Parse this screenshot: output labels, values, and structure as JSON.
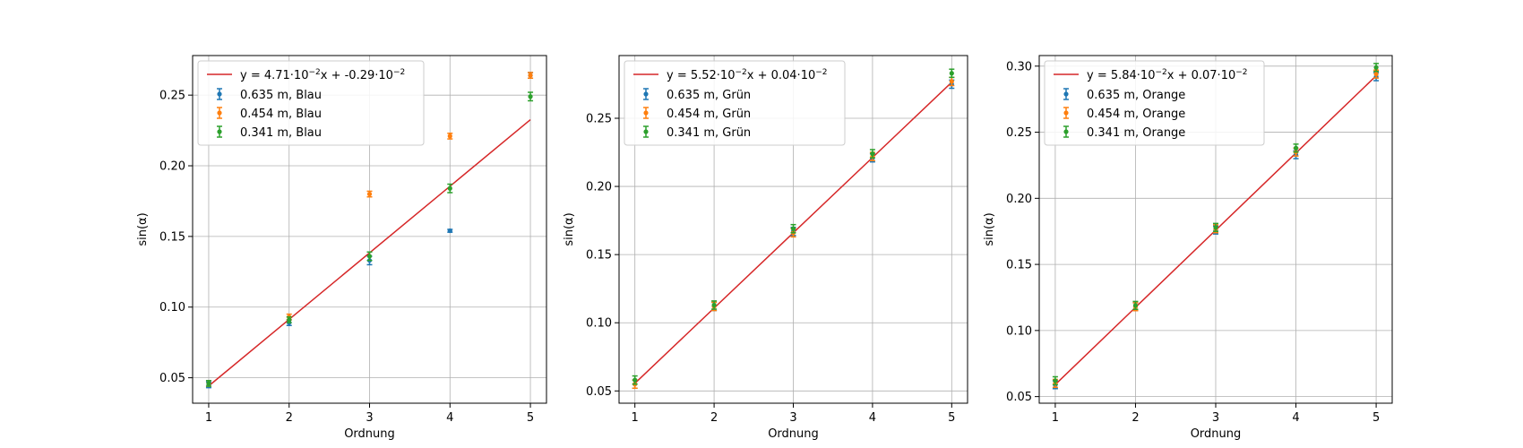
{
  "chart_data": [
    {
      "type": "scatter",
      "xlabel": "Ordnung",
      "ylabel": "sin(α)",
      "xlim": [
        0.8,
        5.2
      ],
      "ylim": [
        0.032,
        0.278
      ],
      "x_ticks": [
        1,
        2,
        3,
        4,
        5
      ],
      "y_ticks": [
        0.05,
        0.1,
        0.15,
        0.2,
        0.25
      ],
      "y_tick_labels": [
        "0.05",
        "0.10",
        "0.15",
        "0.20",
        "0.25"
      ],
      "grid": true,
      "legend_position": "top-left",
      "fit": {
        "label_main": "y = 4.71·10",
        "label_exp1": "−2",
        "label_mid": "x + -0.29·10",
        "label_exp2": "−2",
        "slope": 0.0471,
        "intercept": -0.0029,
        "color": "#d62728"
      },
      "series": [
        {
          "name": "0.635 m, Blau",
          "color": "#1f77b4",
          "x": [
            1,
            2,
            3,
            4,
            5
          ],
          "y": [
            0.045,
            0.089,
            0.133,
            0.154,
            0.264
          ],
          "err": [
            0.002,
            0.002,
            0.003,
            0.001,
            0.002
          ]
        },
        {
          "name": "0.454 m, Blau",
          "color": "#ff7f0e",
          "x": [
            1,
            2,
            3,
            4,
            5
          ],
          "y": [
            0.046,
            0.093,
            0.18,
            0.221,
            0.264
          ],
          "err": [
            0.002,
            0.002,
            0.002,
            0.002,
            0.002
          ]
        },
        {
          "name": "0.341 m, Blau",
          "color": "#2ca02c",
          "x": [
            1,
            2,
            3,
            4,
            5
          ],
          "y": [
            0.046,
            0.091,
            0.136,
            0.184,
            0.249
          ],
          "err": [
            0.002,
            0.002,
            0.003,
            0.003,
            0.003
          ]
        }
      ]
    },
    {
      "type": "scatter",
      "xlabel": "Ordnung",
      "ylabel": "sin(α)",
      "xlim": [
        0.8,
        5.2
      ],
      "ylim": [
        0.041,
        0.296
      ],
      "x_ticks": [
        1,
        2,
        3,
        4,
        5
      ],
      "y_ticks": [
        0.05,
        0.1,
        0.15,
        0.2,
        0.25
      ],
      "y_tick_labels": [
        "0.05",
        "0.10",
        "0.15",
        "0.20",
        "0.25"
      ],
      "grid": true,
      "legend_position": "top-left",
      "fit": {
        "label_main": "y = 5.52·10",
        "label_exp1": "−2",
        "label_mid": "x + 0.04·10",
        "label_exp2": "−2",
        "slope": 0.0552,
        "intercept": 0.0004,
        "color": "#d62728"
      },
      "series": [
        {
          "name": "0.635 m, Grün",
          "color": "#1f77b4",
          "x": [
            1,
            2,
            3,
            4,
            5
          ],
          "y": [
            0.055,
            0.112,
            0.167,
            0.221,
            0.275
          ],
          "err": [
            0.003,
            0.003,
            0.003,
            0.003,
            0.003
          ]
        },
        {
          "name": "0.454 m, Grün",
          "color": "#ff7f0e",
          "x": [
            1,
            2,
            3,
            4,
            5
          ],
          "y": [
            0.055,
            0.112,
            0.166,
            0.222,
            0.277
          ],
          "err": [
            0.003,
            0.003,
            0.003,
            0.003,
            0.003
          ]
        },
        {
          "name": "0.341 m, Grün",
          "color": "#2ca02c",
          "x": [
            1,
            2,
            3,
            4,
            5
          ],
          "y": [
            0.058,
            0.113,
            0.169,
            0.224,
            0.283
          ],
          "err": [
            0.003,
            0.003,
            0.003,
            0.003,
            0.003
          ]
        }
      ]
    },
    {
      "type": "scatter",
      "xlabel": "Ordnung",
      "ylabel": "sin(α)",
      "xlim": [
        0.8,
        5.2
      ],
      "ylim": [
        0.045,
        0.308
      ],
      "x_ticks": [
        1,
        2,
        3,
        4,
        5
      ],
      "y_ticks": [
        0.05,
        0.1,
        0.15,
        0.2,
        0.25,
        0.3
      ],
      "y_tick_labels": [
        "0.05",
        "0.10",
        "0.15",
        "0.20",
        "0.25",
        "0.30"
      ],
      "grid": true,
      "legend_position": "top-left",
      "fit": {
        "label_main": "y = 5.84·10",
        "label_exp1": "−2",
        "label_mid": "x + 0.07·10",
        "label_exp2": "−2",
        "slope": 0.0584,
        "intercept": 0.0007,
        "color": "#d62728"
      },
      "series": [
        {
          "name": "0.635 m, Orange",
          "color": "#1f77b4",
          "x": [
            1,
            2,
            3,
            4,
            5
          ],
          "y": [
            0.059,
            0.118,
            0.176,
            0.233,
            0.292
          ],
          "err": [
            0.003,
            0.003,
            0.003,
            0.003,
            0.003
          ]
        },
        {
          "name": "0.454 m, Orange",
          "color": "#ff7f0e",
          "x": [
            1,
            2,
            3,
            4,
            5
          ],
          "y": [
            0.06,
            0.118,
            0.177,
            0.235,
            0.294
          ],
          "err": [
            0.003,
            0.003,
            0.003,
            0.003,
            0.003
          ]
        },
        {
          "name": "0.341 m, Orange",
          "color": "#2ca02c",
          "x": [
            1,
            2,
            3,
            4,
            5
          ],
          "y": [
            0.062,
            0.119,
            0.178,
            0.238,
            0.299
          ],
          "err": [
            0.003,
            0.003,
            0.003,
            0.003,
            0.003
          ]
        }
      ]
    }
  ]
}
